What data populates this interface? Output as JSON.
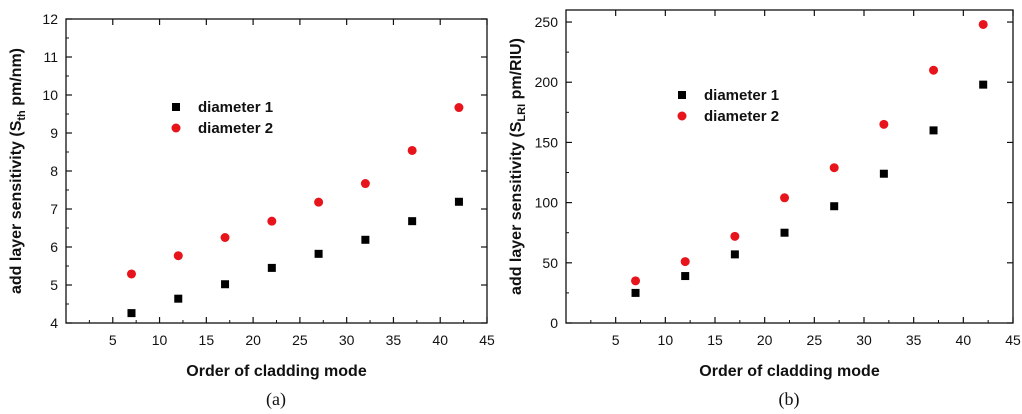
{
  "chart_data": [
    {
      "type": "scatter",
      "panel": "(a)",
      "xlabel": "Order of cladding mode",
      "ylabel": {
        "main": "add layer sensitivity (S",
        "sub": "th",
        "tail": " pm/nm)"
      },
      "xlim": [
        0,
        45
      ],
      "ylim": [
        4,
        12
      ],
      "xticks": [
        5,
        10,
        15,
        20,
        25,
        30,
        35,
        40,
        45
      ],
      "yticks": [
        4,
        5,
        6,
        7,
        8,
        9,
        10,
        11,
        12
      ],
      "x": [
        7,
        12,
        17,
        22,
        27,
        32,
        37,
        42
      ],
      "series": [
        {
          "name": "diameter 1",
          "marker": "square",
          "color": "#000000",
          "values": [
            4.26,
            4.64,
            5.02,
            5.45,
            5.82,
            6.19,
            6.68,
            7.19
          ]
        },
        {
          "name": "diameter 2",
          "marker": "circle",
          "color": "#e8141b",
          "values": [
            5.29,
            5.77,
            6.25,
            6.68,
            7.18,
            7.67,
            8.54,
            9.67
          ]
        }
      ],
      "legend_position": "upper-middle",
      "grid": false
    },
    {
      "type": "scatter",
      "panel": "(b)",
      "xlabel": "Order of cladding mode",
      "ylabel": {
        "main": "add layer sensitivity (S",
        "sub": "LRI",
        "tail": " pm/RIU)"
      },
      "xlim": [
        0,
        45
      ],
      "ylim": [
        0,
        260
      ],
      "xticks": [
        5,
        10,
        15,
        20,
        25,
        30,
        35,
        40,
        45
      ],
      "yticks": [
        0,
        50,
        100,
        150,
        200,
        250
      ],
      "x": [
        7,
        12,
        17,
        22,
        27,
        32,
        37,
        42
      ],
      "series": [
        {
          "name": "diameter 1",
          "marker": "square",
          "color": "#000000",
          "values": [
            25,
            39,
            57,
            75,
            97,
            124,
            160,
            198
          ]
        },
        {
          "name": "diameter 2",
          "marker": "circle",
          "color": "#e8141b",
          "values": [
            35,
            51,
            72,
            104,
            129,
            165,
            210,
            248
          ]
        }
      ],
      "legend_position": "upper-left",
      "grid": false
    }
  ]
}
